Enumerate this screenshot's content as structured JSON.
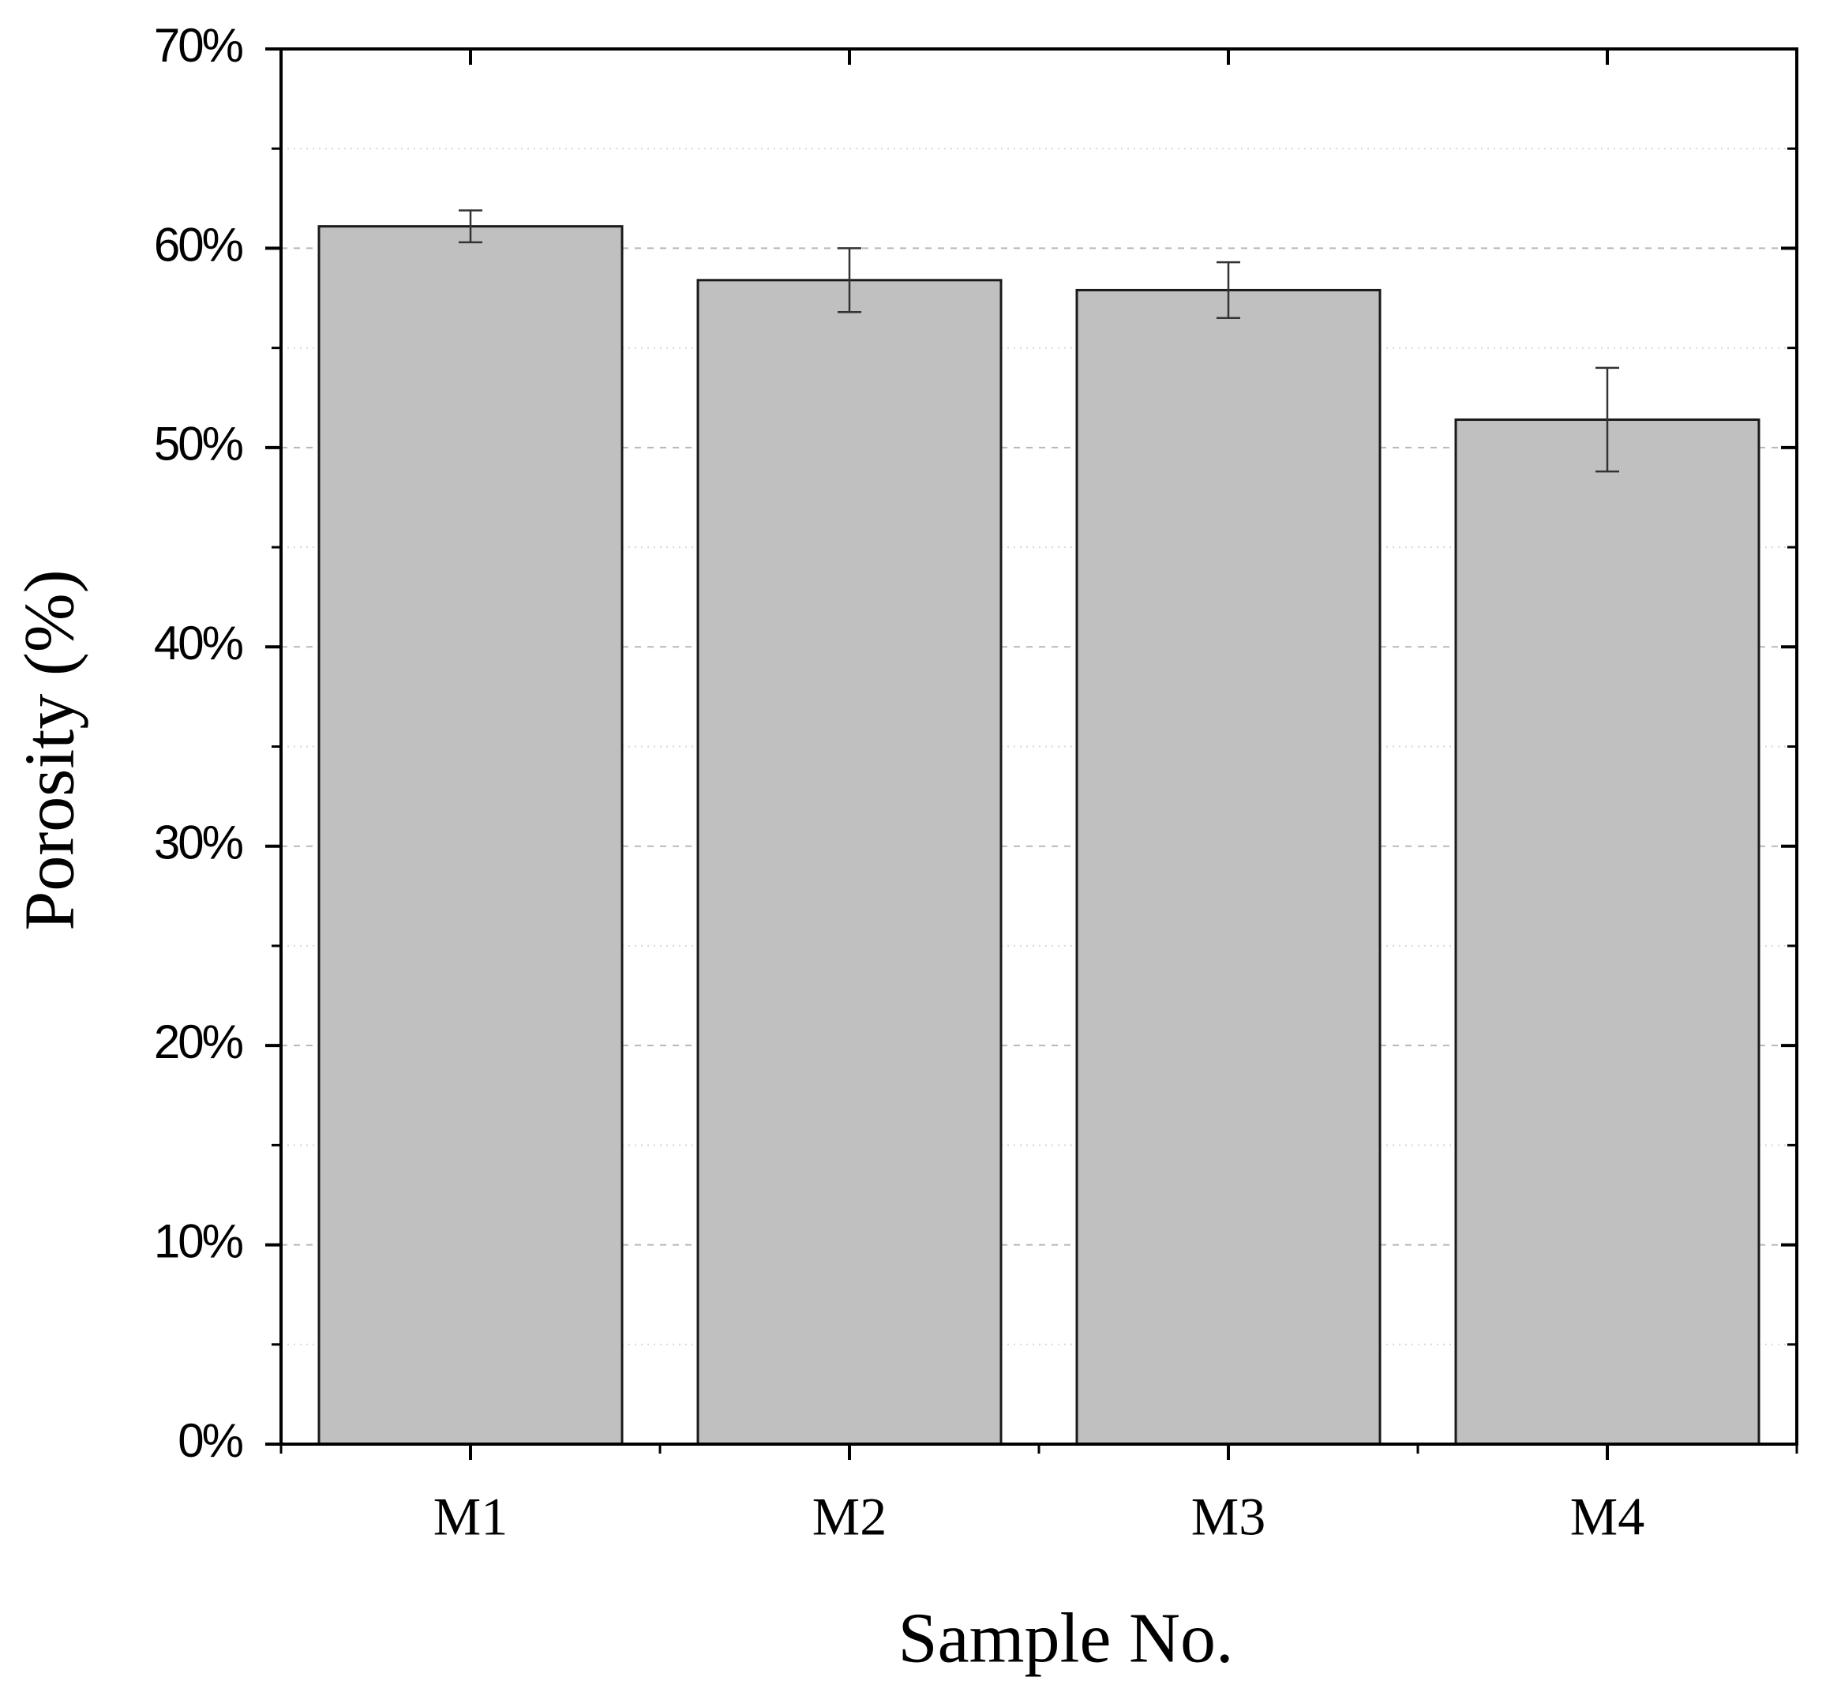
{
  "chart_data": {
    "type": "bar",
    "x_label": "Sample No.",
    "y_label": "Porosity (%)",
    "categories": [
      "M1",
      "M2",
      "M3",
      "M4"
    ],
    "values": [
      61.1,
      58.4,
      57.9,
      51.4
    ],
    "errors": [
      0.8,
      1.6,
      1.4,
      2.6
    ],
    "color": "#c0c0c0",
    "ylim": [
      0,
      70
    ],
    "yticks": [
      {
        "value": 0,
        "label": "0%"
      },
      {
        "value": 10,
        "label": "10%"
      },
      {
        "value": 20,
        "label": "20%"
      },
      {
        "value": 30,
        "label": "30%"
      },
      {
        "value": 40,
        "label": "40%"
      },
      {
        "value": 50,
        "label": "50%"
      },
      {
        "value": 60,
        "label": "60%"
      },
      {
        "value": 70,
        "label": "70%"
      }
    ],
    "minor_yticks": [
      5,
      15,
      25,
      35,
      45,
      55,
      65
    ],
    "grid": true
  }
}
